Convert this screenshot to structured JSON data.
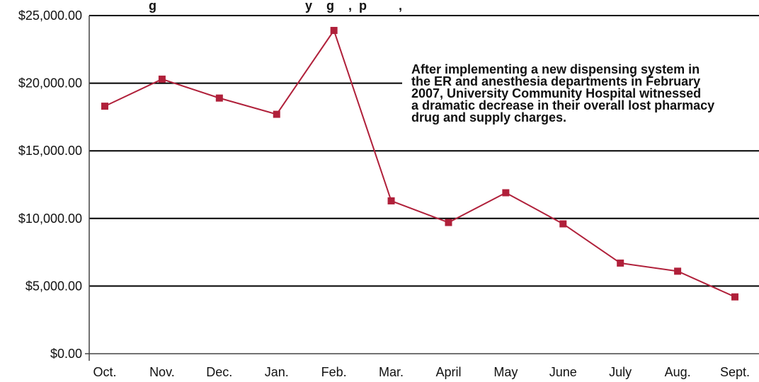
{
  "chart_data": {
    "type": "line",
    "title": "",
    "visible_title_fragment": "g                                          y    g    ,  p         ,",
    "xlabel": "",
    "ylabel": "",
    "categories": [
      "Oct.",
      "Nov.",
      "Dec.",
      "Jan.",
      "Feb.",
      "Mar.",
      "April",
      "May",
      "June",
      "July",
      "Aug.",
      "Sept."
    ],
    "series": [
      {
        "values": [
          18300,
          20300,
          18900,
          17700,
          23900,
          11300,
          9700,
          11900,
          9600,
          6700,
          6100,
          4200
        ]
      }
    ],
    "y_ticks": [
      "$25,000.00",
      "$20,000.00",
      "$15,000.00",
      "$10,000.00",
      "$5,000.00",
      "$0.00"
    ],
    "ylim": [
      0,
      25000
    ],
    "grid": "horizontal",
    "annotation": [
      "After implementing a new dispensing system in",
      "the ER and anesthesia departments in February",
      "2007, University Community Hospital witnessed",
      "a dramatic decrease in their overall lost pharmacy",
      "drug and supply charges."
    ],
    "colors": {
      "series": "#b0203a",
      "marker": "#b0203a",
      "grid": "#000000",
      "axis": "#444444"
    }
  }
}
